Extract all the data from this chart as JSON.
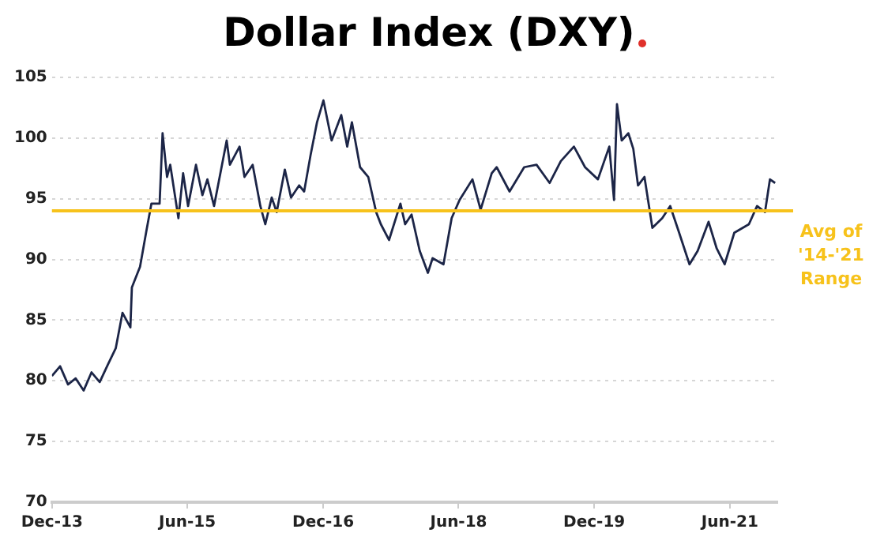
{
  "chart_data": {
    "type": "line",
    "title": "Dollar Index (DXY)",
    "x": [
      "2013-12-01",
      "2014-01-03",
      "2014-02-04",
      "2014-03-07",
      "2014-04-08",
      "2014-05-10",
      "2014-06-12",
      "2014-07-14",
      "2014-08-16",
      "2014-09-12",
      "2014-10-14",
      "2014-10-20",
      "2014-11-22",
      "2014-12-18",
      "2015-01-07",
      "2015-02-09",
      "2015-02-21",
      "2015-03-11",
      "2015-03-24",
      "2015-04-26",
      "2015-05-15",
      "2015-06-04",
      "2015-07-06",
      "2015-08-01",
      "2015-08-21",
      "2015-09-17",
      "2015-10-05",
      "2015-11-07",
      "2015-11-20",
      "2015-12-29",
      "2016-01-18",
      "2016-02-20",
      "2016-03-22",
      "2016-04-11",
      "2016-05-07",
      "2016-05-27",
      "2016-06-29",
      "2016-07-24",
      "2016-08-26",
      "2016-09-15",
      "2016-10-11",
      "2016-11-06",
      "2016-12-02",
      "2017-01-04",
      "2017-02-12",
      "2017-03-08",
      "2017-03-27",
      "2017-04-29",
      "2017-06-01",
      "2017-07-03",
      "2017-07-22",
      "2017-08-24",
      "2017-10-09",
      "2017-10-28",
      "2017-11-23",
      "2017-12-26",
      "2018-01-28",
      "2018-02-16",
      "2018-04-01",
      "2018-05-04",
      "2018-06-05",
      "2018-07-27",
      "2018-08-29",
      "2018-10-13",
      "2018-11-02",
      "2018-12-24",
      "2019-02-21",
      "2019-04-12",
      "2019-06-04",
      "2019-07-19",
      "2019-09-10",
      "2019-10-25",
      "2019-12-16",
      "2020-01-31",
      "2020-02-19",
      "2020-03-02",
      "2020-03-21",
      "2020-04-17",
      "2020-05-07",
      "2020-05-26",
      "2020-06-21",
      "2020-07-23",
      "2020-09-01",
      "2020-10-03",
      "2020-11-05",
      "2020-12-20",
      "2021-01-22",
      "2021-03-07",
      "2021-04-09",
      "2021-05-11",
      "2021-06-19",
      "2021-08-17",
      "2021-09-19",
      "2021-10-21",
      "2021-11-10",
      "2021-12-01"
    ],
    "series": [
      {
        "color": "#1c2547",
        "values": [
          80.4,
          81.2,
          79.7,
          80.2,
          79.2,
          80.7,
          79.9,
          81.3,
          82.7,
          85.6,
          84.4,
          87.7,
          89.4,
          92.4,
          94.6,
          94.6,
          100.4,
          96.8,
          97.8,
          93.4,
          97.1,
          94.4,
          97.8,
          95.3,
          96.6,
          94.4,
          96.3,
          99.8,
          97.8,
          99.3,
          96.8,
          97.8,
          94.4,
          92.9,
          95.1,
          93.9,
          97.4,
          95.1,
          96.1,
          95.6,
          98.6,
          101.3,
          103.1,
          99.8,
          101.9,
          99.3,
          101.3,
          97.6,
          96.8,
          93.9,
          92.9,
          91.6,
          94.6,
          92.9,
          93.7,
          90.7,
          88.9,
          90.1,
          89.6,
          93.4,
          94.9,
          96.6,
          94.1,
          97.1,
          97.6,
          95.6,
          97.6,
          97.8,
          96.3,
          98.1,
          99.3,
          97.6,
          96.6,
          99.3,
          94.9,
          102.8,
          99.8,
          100.4,
          99.1,
          96.1,
          96.8,
          92.6,
          93.4,
          94.4,
          92.4,
          89.6,
          90.7,
          93.1,
          90.9,
          89.6,
          92.2,
          92.9,
          94.4,
          93.9,
          96.6,
          96.3
        ]
      }
    ],
    "xlim": [
      "2013-12-01",
      "2021-12-10"
    ],
    "xticks": [
      {
        "value": "2013-12-01",
        "label": "Dec-13"
      },
      {
        "value": "2015-06-01",
        "label": "Jun-15"
      },
      {
        "value": "2016-12-01",
        "label": "Dec-16"
      },
      {
        "value": "2018-06-01",
        "label": "Jun-18"
      },
      {
        "value": "2019-12-01",
        "label": "Dec-19"
      },
      {
        "value": "2021-06-01",
        "label": "Jun-21"
      }
    ],
    "ylim": [
      70,
      105
    ],
    "yticks": [
      70,
      75,
      80,
      85,
      90,
      95,
      100,
      105
    ],
    "ref_lines": [
      {
        "axis": "y",
        "value": 94,
        "label": "Avg of '14-'21 Range",
        "color": "#f7c21b"
      }
    ],
    "grid": "y",
    "marker": "none",
    "line_style": "solid"
  }
}
